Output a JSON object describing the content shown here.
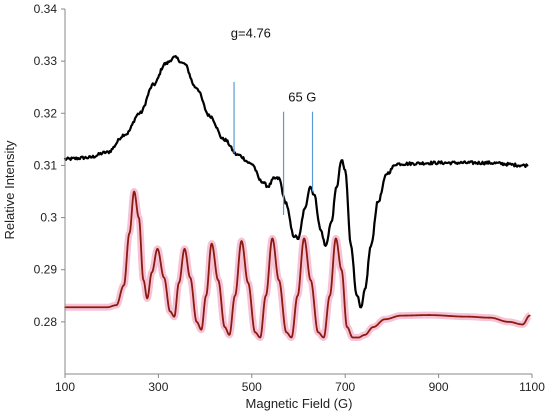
{
  "chart_data": {
    "type": "line",
    "xlabel": "Magnetic Field (G)",
    "ylabel": "Relative Intensity",
    "xlim": [
      100,
      1100
    ],
    "ylim": [
      0.27,
      0.34
    ],
    "x_ticks": [
      "100",
      "300",
      "500",
      "700",
      "900",
      "1100"
    ],
    "y_ticks": [
      "0.28",
      "0.29",
      "0.3",
      "0.31",
      "0.32",
      "0.33",
      "0.34"
    ],
    "grid": false,
    "legend": "none",
    "series": [
      {
        "color": "#000000",
        "style": "experimental",
        "points": [
          [
            100,
            0.3112
          ],
          [
            150,
            0.3115
          ],
          [
            190,
            0.3125
          ],
          [
            230,
            0.316
          ],
          [
            260,
            0.32
          ],
          [
            290,
            0.3255
          ],
          [
            315,
            0.3295
          ],
          [
            335,
            0.3307
          ],
          [
            355,
            0.3295
          ],
          [
            380,
            0.325
          ],
          [
            410,
            0.3195
          ],
          [
            440,
            0.315
          ],
          [
            470,
            0.312
          ],
          [
            500,
            0.3103
          ],
          [
            520,
            0.307
          ],
          [
            535,
            0.306
          ],
          [
            548,
            0.3075
          ],
          [
            558,
            0.3075
          ],
          [
            572,
            0.303
          ],
          [
            590,
            0.2965
          ],
          [
            600,
            0.296
          ],
          [
            613,
            0.3015
          ],
          [
            625,
            0.306
          ],
          [
            633,
            0.3045
          ],
          [
            648,
            0.2975
          ],
          [
            658,
            0.2945
          ],
          [
            670,
            0.299
          ],
          [
            682,
            0.306
          ],
          [
            692,
            0.311
          ],
          [
            700,
            0.309
          ],
          [
            712,
            0.295
          ],
          [
            724,
            0.2855
          ],
          [
            734,
            0.2825
          ],
          [
            742,
            0.286
          ],
          [
            755,
            0.2945
          ],
          [
            770,
            0.303
          ],
          [
            790,
            0.3085
          ],
          [
            810,
            0.3103
          ],
          [
            900,
            0.3105
          ],
          [
            1000,
            0.3105
          ],
          [
            1090,
            0.31
          ]
        ]
      },
      {
        "color": "#8b1a10",
        "halo_color": "#f4b8cf",
        "style": "simulated",
        "points": [
          [
            100,
            0.2828
          ],
          [
            190,
            0.2828
          ],
          [
            210,
            0.2832
          ],
          [
            226,
            0.287
          ],
          [
            238,
            0.297
          ],
          [
            248,
            0.305
          ],
          [
            258,
            0.3
          ],
          [
            268,
            0.288
          ],
          [
            276,
            0.2845
          ],
          [
            286,
            0.2895
          ],
          [
            298,
            0.294
          ],
          [
            312,
            0.2885
          ],
          [
            325,
            0.282
          ],
          [
            334,
            0.281
          ],
          [
            344,
            0.2875
          ],
          [
            356,
            0.294
          ],
          [
            368,
            0.2885
          ],
          [
            382,
            0.28
          ],
          [
            392,
            0.2785
          ],
          [
            402,
            0.285
          ],
          [
            414,
            0.295
          ],
          [
            428,
            0.288
          ],
          [
            442,
            0.279
          ],
          [
            452,
            0.2775
          ],
          [
            464,
            0.285
          ],
          [
            478,
            0.2955
          ],
          [
            492,
            0.2875
          ],
          [
            507,
            0.278
          ],
          [
            518,
            0.277
          ],
          [
            530,
            0.285
          ],
          [
            544,
            0.296
          ],
          [
            558,
            0.288
          ],
          [
            574,
            0.278
          ],
          [
            585,
            0.277
          ],
          [
            598,
            0.285
          ],
          [
            612,
            0.296
          ],
          [
            626,
            0.288
          ],
          [
            642,
            0.278
          ],
          [
            654,
            0.277
          ],
          [
            667,
            0.285
          ],
          [
            680,
            0.296
          ],
          [
            692,
            0.29
          ],
          [
            704,
            0.279
          ],
          [
            716,
            0.277
          ],
          [
            728,
            0.277
          ],
          [
            742,
            0.2775
          ],
          [
            760,
            0.279
          ],
          [
            785,
            0.2805
          ],
          [
            820,
            0.2812
          ],
          [
            880,
            0.2813
          ],
          [
            960,
            0.281
          ],
          [
            1010,
            0.2808
          ],
          [
            1050,
            0.28
          ],
          [
            1080,
            0.2795
          ],
          [
            1095,
            0.2812
          ]
        ]
      }
    ],
    "annotations": [
      {
        "text": "g=4.76",
        "x": 455,
        "y": 0.3345
      },
      {
        "text": "65 G",
        "x": 578,
        "y": 0.3223
      }
    ],
    "markers": [
      {
        "x": 462,
        "y_top": 0.326,
        "y_bottom": 0.3123
      },
      {
        "x": 568,
        "y_top": 0.3203,
        "y_bottom": 0.3005
      },
      {
        "x": 630,
        "y_top": 0.3203,
        "y_bottom": 0.305
      }
    ],
    "marker_color": "#5b9bd5"
  }
}
